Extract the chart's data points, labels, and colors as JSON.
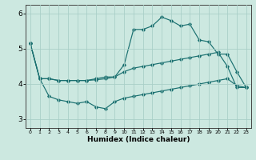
{
  "xlabel": "Humidex (Indice chaleur)",
  "background_color": "#cce8e0",
  "line_color": "#1a7070",
  "xlim": [
    -0.5,
    23.5
  ],
  "ylim": [
    2.75,
    6.25
  ],
  "xticks": [
    0,
    1,
    2,
    3,
    4,
    5,
    6,
    7,
    8,
    9,
    10,
    11,
    12,
    13,
    14,
    15,
    16,
    17,
    18,
    19,
    20,
    21,
    22,
    23
  ],
  "yticks": [
    3,
    4,
    5,
    6
  ],
  "grid_color": "#aacfc8",
  "series": {
    "max": {
      "x": [
        0,
        1,
        2,
        3,
        4,
        5,
        6,
        7,
        8,
        9,
        10,
        11,
        12,
        13,
        14,
        15,
        16,
        17,
        18,
        19,
        20,
        21,
        22,
        23
      ],
      "y": [
        5.15,
        4.15,
        4.15,
        4.1,
        4.1,
        4.1,
        4.1,
        4.15,
        4.2,
        4.2,
        4.55,
        5.55,
        5.55,
        5.65,
        5.9,
        5.8,
        5.65,
        5.7,
        5.25,
        5.2,
        4.85,
        4.85,
        4.35,
        3.9
      ]
    },
    "mid": {
      "x": [
        0,
        1,
        2,
        3,
        4,
        5,
        6,
        7,
        8,
        9,
        10,
        11,
        12,
        13,
        14,
        15,
        16,
        17,
        18,
        19,
        20,
        21,
        22,
        23
      ],
      "y": [
        5.15,
        4.15,
        4.15,
        4.1,
        4.1,
        4.1,
        4.1,
        4.12,
        4.15,
        4.2,
        4.35,
        4.45,
        4.5,
        4.55,
        4.6,
        4.65,
        4.7,
        4.75,
        4.8,
        4.85,
        4.9,
        4.5,
        3.9,
        3.9
      ]
    },
    "min": {
      "x": [
        0,
        1,
        2,
        3,
        4,
        5,
        6,
        7,
        8,
        9,
        10,
        11,
        12,
        13,
        14,
        15,
        16,
        17,
        18,
        19,
        20,
        21,
        22,
        23
      ],
      "y": [
        5.15,
        4.15,
        3.65,
        3.55,
        3.5,
        3.45,
        3.5,
        3.35,
        3.3,
        3.5,
        3.6,
        3.65,
        3.7,
        3.75,
        3.8,
        3.85,
        3.9,
        3.95,
        4.0,
        4.05,
        4.1,
        4.15,
        3.95,
        3.9
      ]
    }
  }
}
